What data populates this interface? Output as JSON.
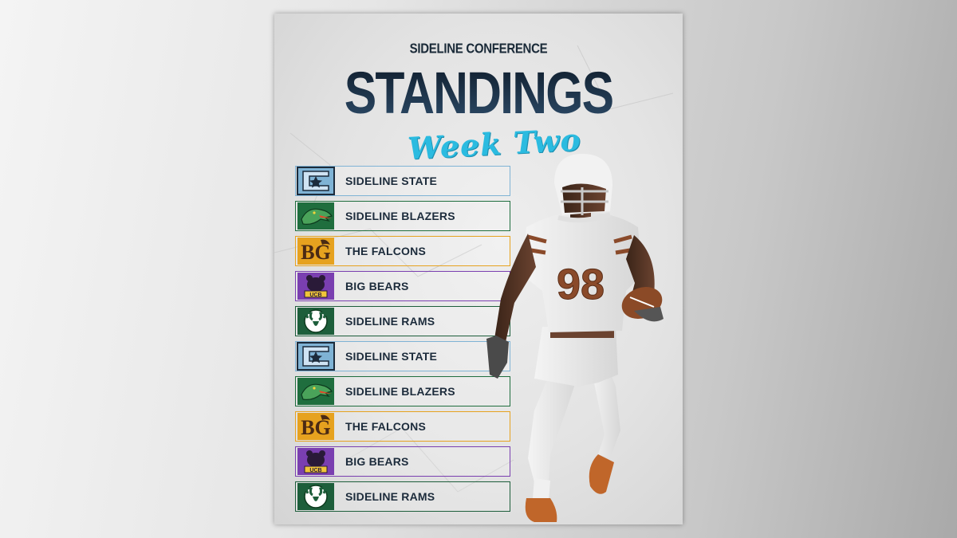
{
  "header": {
    "conference": "SIDELINE CONFERENCE",
    "title": "STANDINGS",
    "subtitle": "Week Two"
  },
  "player": {
    "jersey_number": "98"
  },
  "standings": [
    {
      "team": "SIDELINE STATE",
      "logo": "star-c-logo-icon",
      "accent": "#7fb3d5"
    },
    {
      "team": "SIDELINE BLAZERS",
      "logo": "dragon-logo-icon",
      "accent": "#1f6e3e"
    },
    {
      "team": "THE FALCONS",
      "logo": "bg-monogram-logo-icon",
      "accent": "#e6a21f"
    },
    {
      "team": "BIG BEARS",
      "logo": "bear-logo-icon",
      "accent": "#7a3fb0"
    },
    {
      "team": "SIDELINE RAMS",
      "logo": "ram-logo-icon",
      "accent": "#1d5e3b"
    },
    {
      "team": "SIDELINE STATE",
      "logo": "star-c-logo-icon",
      "accent": "#7fb3d5"
    },
    {
      "team": "SIDELINE BLAZERS",
      "logo": "dragon-logo-icon",
      "accent": "#1f6e3e"
    },
    {
      "team": "THE FALCONS",
      "logo": "bg-monogram-logo-icon",
      "accent": "#e6a21f"
    },
    {
      "team": "BIG BEARS",
      "logo": "bear-logo-icon",
      "accent": "#7a3fb0"
    },
    {
      "team": "SIDELINE RAMS",
      "logo": "ram-logo-icon",
      "accent": "#1d5e3b"
    }
  ]
}
